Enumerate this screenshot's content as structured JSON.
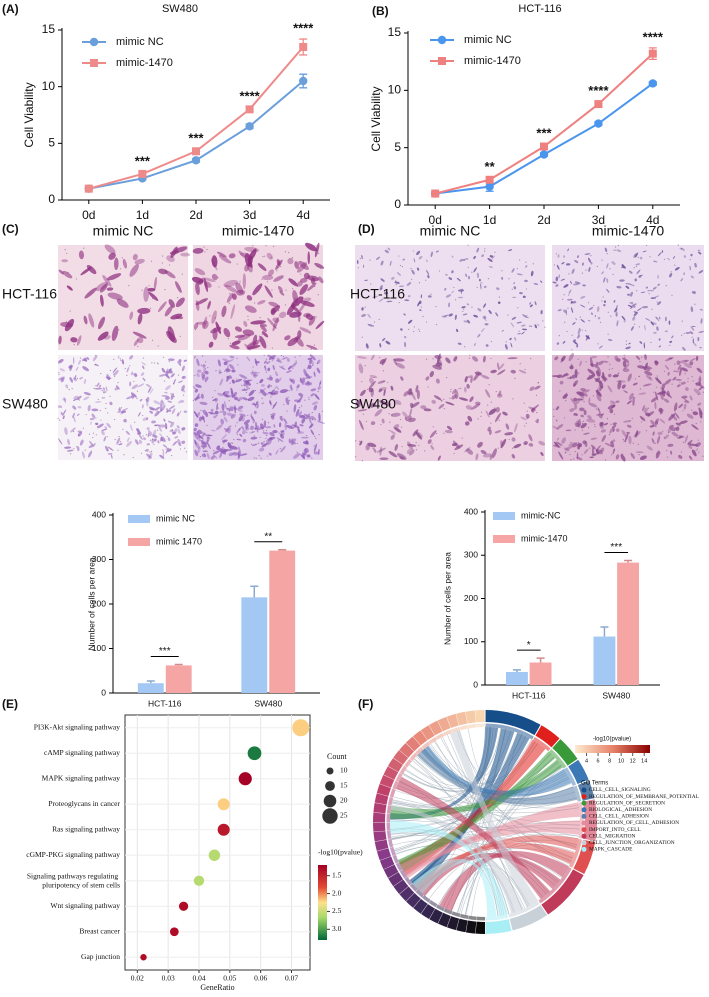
{
  "chart_data": [
    {
      "type": "line",
      "panel": "(A)",
      "title": "SW480",
      "ylabel": "Cell Viability",
      "categories": [
        "0d",
        "1d",
        "2d",
        "3d",
        "4d"
      ],
      "ylim": [
        0,
        15
      ],
      "yticks": [
        0,
        5,
        10,
        15
      ],
      "series": [
        {
          "name": "mimic NC",
          "color": "#6a9fdc",
          "marker": "circle",
          "values": [
            1,
            1.9,
            3.5,
            6.5,
            10.5
          ],
          "errors": [
            0.1,
            0.1,
            0.15,
            0.2,
            0.6
          ]
        },
        {
          "name": "mimic-1470",
          "color": "#ef8a8a",
          "marker": "square",
          "values": [
            1,
            2.3,
            4.3,
            8,
            13.5
          ],
          "errors": [
            0.1,
            0.15,
            0.2,
            0.2,
            0.7
          ]
        }
      ],
      "annotations": [
        null,
        "***",
        "***",
        "****",
        "****"
      ]
    },
    {
      "type": "line",
      "panel": "(B)",
      "title": "HCT-116",
      "ylabel": "Cell Viability",
      "categories": [
        "0d",
        "1d",
        "2d",
        "3d",
        "4d"
      ],
      "ylim": [
        0,
        15
      ],
      "yticks": [
        0,
        5,
        10,
        15
      ],
      "series": [
        {
          "name": "mimic NC",
          "color": "#4a95ee",
          "marker": "circle",
          "values": [
            1,
            1.6,
            4.4,
            7.1,
            10.6
          ],
          "errors": [
            0.1,
            0.4,
            0.15,
            0.15,
            0.15
          ]
        },
        {
          "name": "mimic-1470",
          "color": "#ef8080",
          "marker": "square",
          "values": [
            1,
            2.2,
            5.1,
            8.8,
            13.2
          ],
          "errors": [
            0.1,
            0.2,
            0.2,
            0.2,
            0.5
          ]
        }
      ],
      "annotations": [
        null,
        "**",
        "***",
        "****",
        "****"
      ]
    },
    {
      "type": "bar",
      "panel": "(C)",
      "image_columns": [
        "mimic NC",
        "mimic-1470"
      ],
      "image_rows": [
        "HCT-116",
        "SW480"
      ],
      "ylabel": "Number of cells per area",
      "categories": [
        "HCT-116",
        "SW480"
      ],
      "ylim": [
        0,
        400
      ],
      "yticks": [
        0,
        100,
        200,
        300,
        400
      ],
      "series": [
        {
          "name": "mimic NC",
          "color": "#a4c8f4",
          "values": [
            22,
            215
          ],
          "errors": [
            5,
            25
          ]
        },
        {
          "name": "mimic 1470",
          "color": "#f6a5a5",
          "values": [
            62,
            320
          ],
          "errors": [
            2,
            2
          ]
        }
      ],
      "annotations": [
        "***",
        "**"
      ]
    },
    {
      "type": "bar",
      "panel": "(D)",
      "image_columns": [
        "mimic NC",
        "mimic-1470"
      ],
      "image_rows": [
        "HCT-116",
        "SW480"
      ],
      "ylabel": "Number of cells per area",
      "categories": [
        "HCT-116",
        "SW480"
      ],
      "ylim": [
        0,
        400
      ],
      "yticks": [
        0,
        100,
        200,
        300,
        400
      ],
      "series": [
        {
          "name": "mimic-NC",
          "color": "#a4c8f4",
          "values": [
            30,
            112
          ],
          "errors": [
            5,
            22
          ]
        },
        {
          "name": "mimic-1470",
          "color": "#f6a5a5",
          "values": [
            52,
            283
          ],
          "errors": [
            10,
            5
          ]
        }
      ],
      "annotations": [
        "*",
        "***"
      ]
    },
    {
      "type": "dot",
      "panel": "(E)",
      "categories": [
        "PI3K-Akt signaling pathway",
        "cAMP signaling pathway",
        "MAPK signaling pathway",
        "Proteoglycans in cancer",
        "Ras signaling pathway",
        "cGMP-PKG signaling pathway",
        "Signaling pathways regulating pluripotency of stem cells",
        "Wnt signaling pathway",
        "Breast cancer",
        "Gap junction"
      ],
      "x": [
        0.073,
        0.058,
        0.055,
        0.048,
        0.048,
        0.045,
        0.04,
        0.035,
        0.032,
        0.022
      ],
      "size": [
        28,
        22,
        21,
        19,
        19,
        18,
        16,
        14,
        13,
        9
      ],
      "color_values": [
        2.2,
        3.2,
        1.2,
        2.2,
        1.4,
        2.6,
        2.6,
        1.3,
        1.3,
        1.3
      ],
      "xlabel": "GeneRatio",
      "xlim": [
        0.016,
        0.076
      ],
      "xticks": [
        0.02,
        0.03,
        0.04,
        0.05,
        0.06,
        0.07
      ],
      "size_title": "Count",
      "size_ticks": [
        10,
        15,
        20,
        25
      ],
      "color_title": "-log10(pvalue)",
      "clim": [
        1.2,
        3.3
      ],
      "cticks": [
        1.5,
        {
          "value": 2,
          "label": "2.0"
        },
        2.5,
        {
          "value": 3,
          "label": "3.0"
        }
      ]
    },
    {
      "type": "chord",
      "panel": "(F)",
      "color_title": "-log10(pvalue)",
      "clim": [
        2,
        15
      ],
      "cticks": [
        4,
        6,
        8,
        10,
        12,
        14
      ],
      "legend_title": "GO Terms",
      "terms": [
        {
          "name": "CELL_CELL_SIGNALING",
          "color": "#164e8a"
        },
        {
          "name": "REGULATION_OF_MEMBRANE_POTENTIAL",
          "color": "#e0201c"
        },
        {
          "name": "REGULATION_OF_SECRETION",
          "color": "#3a9a3a"
        },
        {
          "name": "BIOLOGICAL_ADHESION",
          "color": "#3b78b5"
        },
        {
          "name": "CELL_CELL_ADHESION",
          "color": "#5a7fa8"
        },
        {
          "name": "REGULATION_OF_CELL_ADHESION",
          "color": "#e48a9a"
        },
        {
          "name": "IMPORT_INTO_CELL",
          "color": "#e05050"
        },
        {
          "name": "CELL_MIGRATION",
          "color": "#c03a5a"
        },
        {
          "name": "CELL_JUNCTION_ORGANIZATION",
          "color": "#c8d0d8"
        },
        {
          "name": "MAPK_CASCADE",
          "color": "#a8eef5"
        }
      ]
    }
  ]
}
